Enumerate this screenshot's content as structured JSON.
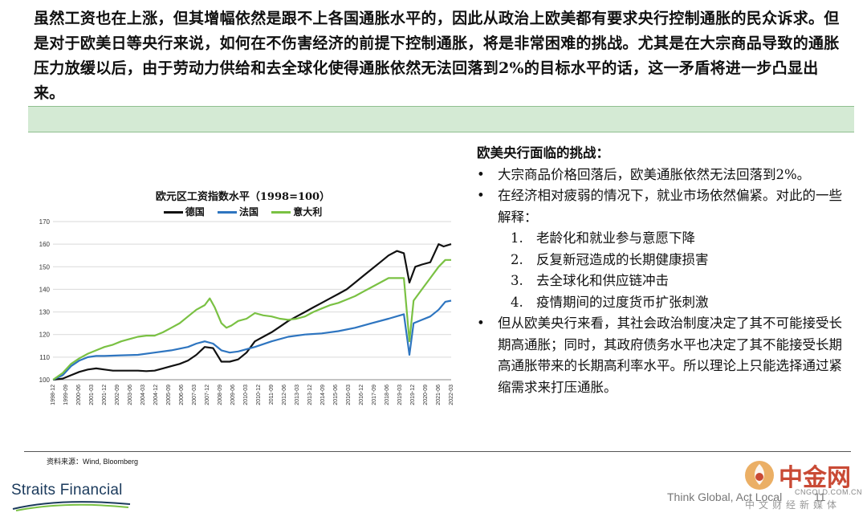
{
  "intro": {
    "text": "虽然工资也在上涨，但其增幅依然是跟不上各国通胀水平的，因此从政治上欧美都有要求央行控制通胀的民众诉求。但是对于欧美日等央行来说，如何在不伤害经济的前提下控制通胀，将是非常困难的挑战。尤其是在大宗商品导致的通胀压力放缓以后，由于劳动力供给和去全球化使得通胀依然无法回落到2%的目标水平的话，这一矛盾将进一步凸显出来。"
  },
  "chart_data": {
    "type": "line",
    "title": "欧元区工资指数水平（1998=100）",
    "ylim": [
      100,
      170
    ],
    "yticks": [
      100,
      110,
      120,
      130,
      140,
      150,
      160,
      170
    ],
    "xlabels": [
      "1998-12",
      "1999-09",
      "2000-06",
      "2001-03",
      "2001-12",
      "2002-09",
      "2003-06",
      "2004-03",
      "2004-12",
      "2005-09",
      "2006-06",
      "2007-03",
      "2007-12",
      "2008-09",
      "2009-06",
      "2010-03",
      "2010-12",
      "2011-09",
      "2012-06",
      "2013-03",
      "2013-12",
      "2014-09",
      "2015-06",
      "2016-03",
      "2016-12",
      "2017-09",
      "2018-06",
      "2019-03",
      "2019-12",
      "2020-09",
      "2021-06",
      "2022-03"
    ],
    "x_start": 1998.917,
    "x_end": 2022.75,
    "series": [
      {
        "name": "德国",
        "color": "#111111",
        "points": [
          [
            1998.92,
            100
          ],
          [
            1999.5,
            100.5
          ],
          [
            2000.0,
            102
          ],
          [
            2000.5,
            103.5
          ],
          [
            2001.0,
            104.5
          ],
          [
            2001.5,
            105
          ],
          [
            2002.0,
            104.5
          ],
          [
            2002.5,
            104
          ],
          [
            2003.0,
            104
          ],
          [
            2003.5,
            104
          ],
          [
            2004.0,
            104
          ],
          [
            2004.5,
            103.8
          ],
          [
            2005.0,
            104
          ],
          [
            2005.5,
            105
          ],
          [
            2006.0,
            106
          ],
          [
            2006.5,
            107
          ],
          [
            2007.0,
            108.5
          ],
          [
            2007.5,
            111
          ],
          [
            2008.0,
            114.5
          ],
          [
            2008.5,
            114
          ],
          [
            2009.0,
            108
          ],
          [
            2009.5,
            108
          ],
          [
            2010.0,
            109
          ],
          [
            2010.5,
            112
          ],
          [
            2011.0,
            117
          ],
          [
            2011.5,
            119
          ],
          [
            2012.0,
            121
          ],
          [
            2012.5,
            123.5
          ],
          [
            2013.0,
            126
          ],
          [
            2013.5,
            128
          ],
          [
            2014.0,
            130
          ],
          [
            2014.5,
            132
          ],
          [
            2015.0,
            134
          ],
          [
            2015.5,
            136
          ],
          [
            2016.0,
            138
          ],
          [
            2016.5,
            140
          ],
          [
            2017.0,
            143
          ],
          [
            2017.5,
            146
          ],
          [
            2018.0,
            149
          ],
          [
            2018.5,
            152
          ],
          [
            2019.0,
            155
          ],
          [
            2019.5,
            157
          ],
          [
            2019.92,
            156
          ],
          [
            2020.25,
            143
          ],
          [
            2020.6,
            150
          ],
          [
            2021.0,
            151
          ],
          [
            2021.5,
            152
          ],
          [
            2022.0,
            160
          ],
          [
            2022.3,
            159
          ],
          [
            2022.75,
            160
          ]
        ]
      },
      {
        "name": "法国",
        "color": "#2e75c0",
        "points": [
          [
            1998.92,
            100
          ],
          [
            1999.5,
            102
          ],
          [
            2000.0,
            106
          ],
          [
            2000.5,
            108.5
          ],
          [
            2001.0,
            110
          ],
          [
            2001.5,
            110.5
          ],
          [
            2002.0,
            110.5
          ],
          [
            2003.0,
            110.8
          ],
          [
            2004.0,
            111
          ],
          [
            2005.0,
            112
          ],
          [
            2006.0,
            113
          ],
          [
            2007.0,
            114.5
          ],
          [
            2007.5,
            116
          ],
          [
            2008.0,
            117
          ],
          [
            2008.5,
            116
          ],
          [
            2009.0,
            113
          ],
          [
            2009.5,
            112
          ],
          [
            2010.0,
            112.5
          ],
          [
            2011.0,
            114.5
          ],
          [
            2012.0,
            117
          ],
          [
            2013.0,
            119
          ],
          [
            2014.0,
            120
          ],
          [
            2015.0,
            120.5
          ],
          [
            2016.0,
            121.5
          ],
          [
            2017.0,
            123
          ],
          [
            2018.0,
            125
          ],
          [
            2019.0,
            127
          ],
          [
            2019.92,
            129
          ],
          [
            2020.25,
            111
          ],
          [
            2020.5,
            125
          ],
          [
            2021.0,
            126.5
          ],
          [
            2021.5,
            128
          ],
          [
            2022.0,
            131
          ],
          [
            2022.4,
            134.5
          ],
          [
            2022.75,
            135
          ]
        ]
      },
      {
        "name": "意大利",
        "color": "#7ac143",
        "points": [
          [
            1998.92,
            100
          ],
          [
            1999.5,
            103
          ],
          [
            2000.0,
            107
          ],
          [
            2000.5,
            109.5
          ],
          [
            2001.0,
            111.5
          ],
          [
            2001.5,
            113
          ],
          [
            2002.0,
            114.5
          ],
          [
            2002.5,
            115.5
          ],
          [
            2003.0,
            117
          ],
          [
            2003.5,
            118
          ],
          [
            2004.0,
            119
          ],
          [
            2004.5,
            119.5
          ],
          [
            2005.0,
            119.5
          ],
          [
            2005.5,
            121
          ],
          [
            2006.0,
            123
          ],
          [
            2006.5,
            125
          ],
          [
            2007.0,
            128
          ],
          [
            2007.5,
            131
          ],
          [
            2008.0,
            133
          ],
          [
            2008.3,
            136
          ],
          [
            2008.6,
            132
          ],
          [
            2009.0,
            125
          ],
          [
            2009.3,
            123
          ],
          [
            2009.6,
            124
          ],
          [
            2010.0,
            126
          ],
          [
            2010.5,
            127
          ],
          [
            2011.0,
            129.5
          ],
          [
            2011.5,
            128.5
          ],
          [
            2012.0,
            128
          ],
          [
            2012.5,
            127
          ],
          [
            2013.0,
            126.5
          ],
          [
            2013.5,
            127
          ],
          [
            2014.0,
            128
          ],
          [
            2014.5,
            130
          ],
          [
            2015.0,
            131.5
          ],
          [
            2015.5,
            133
          ],
          [
            2016.0,
            134
          ],
          [
            2016.5,
            135.5
          ],
          [
            2017.0,
            137
          ],
          [
            2017.5,
            139
          ],
          [
            2018.0,
            141
          ],
          [
            2018.5,
            143
          ],
          [
            2019.0,
            145
          ],
          [
            2019.92,
            145
          ],
          [
            2020.25,
            117
          ],
          [
            2020.5,
            135
          ],
          [
            2021.0,
            140
          ],
          [
            2021.5,
            145
          ],
          [
            2022.0,
            150
          ],
          [
            2022.4,
            153
          ],
          [
            2022.75,
            153
          ]
        ]
      }
    ]
  },
  "source": "资料来源：Wind, Bloomberg",
  "panel": {
    "heading": "欧美央行面临的挑战：",
    "bullets": [
      "大宗商品价格回落后，欧美通胀依然无法回落到2%。",
      "在经济相对疲弱的情况下，就业市场依然偏紧。对此的一些解释：",
      "但从欧美央行来看，其社会政治制度决定了其不可能接受长期高通胀；同时，其政府债务水平也决定了其不能接受长期高通胀带来的长期高利率水平。所以理论上只能选择通过紧缩需求来打压通胀。"
    ],
    "sub_items": [
      {
        "num": "1.",
        "text": "老龄化和就业参与意愿下降"
      },
      {
        "num": "2.",
        "text": "反复新冠造成的长期健康损害"
      },
      {
        "num": "3.",
        "text": "去全球化和供应链冲击"
      },
      {
        "num": "4.",
        "text": "疫情期间的过度货币扩张刺激"
      }
    ]
  },
  "footer": {
    "brand": "Straits Financial",
    "tagline": "Think Global, Act Local",
    "page_number": "11"
  },
  "watermark": {
    "name": "中金网",
    "domain": "CNGOLD.COM.CN",
    "slogan": "中文财经新媒体"
  }
}
